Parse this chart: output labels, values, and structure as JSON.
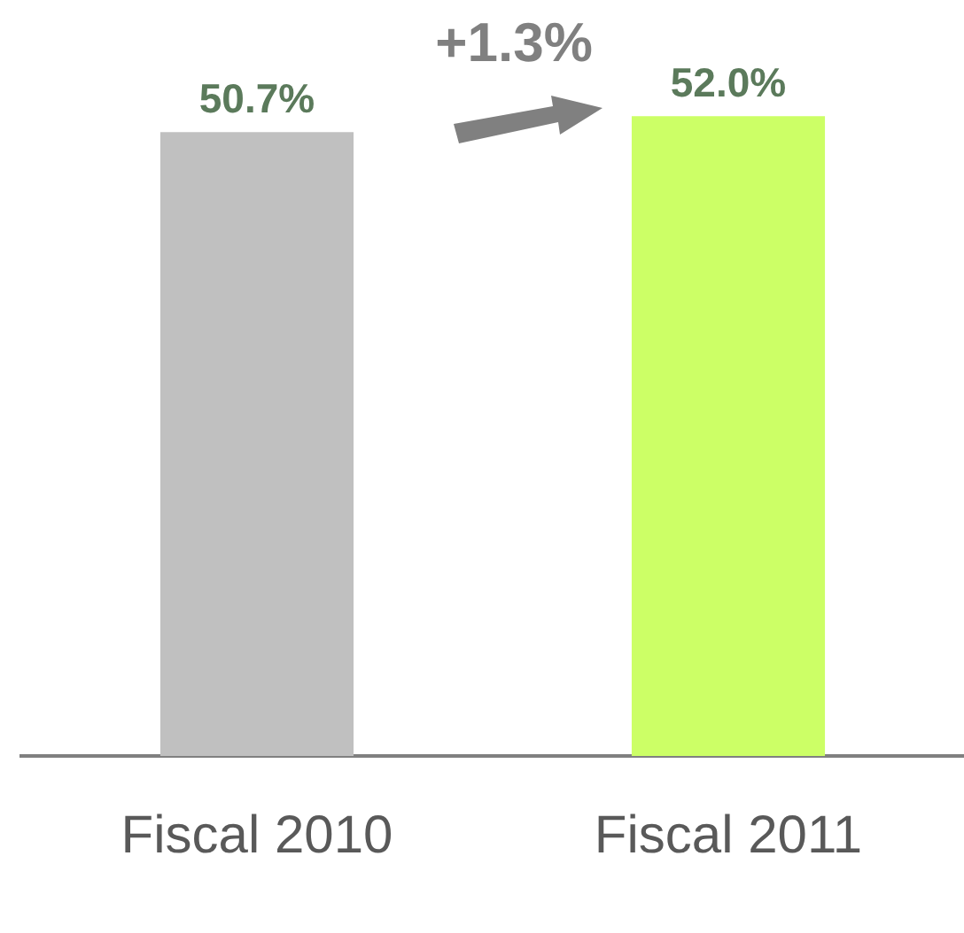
{
  "chart_data": {
    "type": "bar",
    "categories": [
      "Fiscal 2010",
      "Fiscal 2011"
    ],
    "values": [
      50.7,
      52.0
    ],
    "colors": [
      "#c0c0c0",
      "#ccff66"
    ],
    "value_labels": [
      "50.7%",
      "52.0%"
    ],
    "annotations": [
      "+1.3%"
    ],
    "grid": false,
    "legend": false,
    "tick_labels": "x"
  }
}
